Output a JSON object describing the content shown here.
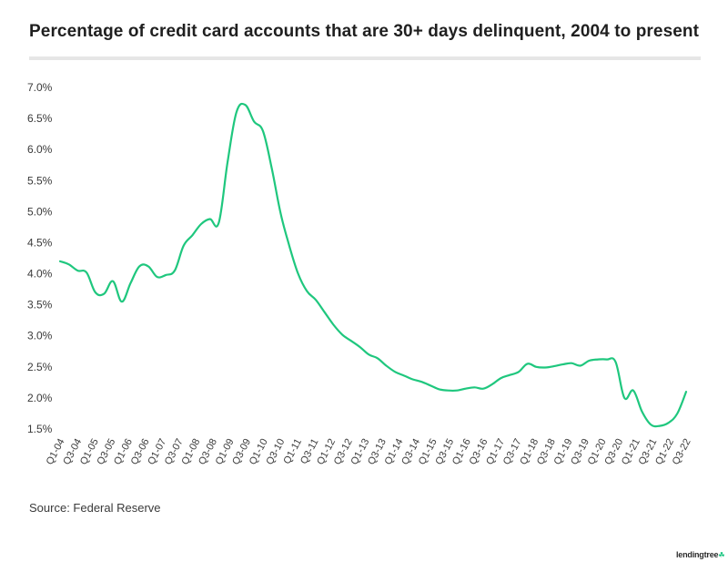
{
  "title": "Percentage of credit card accounts that are 30+ days delinquent, 2004 to present",
  "source": "Source: Federal Reserve",
  "logo_text": "lendingtree",
  "colors": {
    "line": "#1fc77e",
    "text": "#2b2b2b",
    "rule": "#e6e6e6"
  },
  "chart_data": {
    "type": "line",
    "title": "Percentage of credit card accounts that are 30+ days delinquent, 2004 to present",
    "xlabel": "",
    "ylabel": "",
    "ylim": [
      1.5,
      7.0
    ],
    "y_ticks": [
      "1.5%",
      "2.0%",
      "2.5%",
      "3.0%",
      "3.5%",
      "4.0%",
      "4.5%",
      "5.0%",
      "5.5%",
      "6.0%",
      "6.5%",
      "7.0%"
    ],
    "x_tick_labels": [
      "Q1-04",
      "Q3-04",
      "Q1-05",
      "Q3-05",
      "Q1-06",
      "Q3-06",
      "Q1-07",
      "Q3-07",
      "Q1-08",
      "Q3-08",
      "Q1-09",
      "Q3-09",
      "Q1-10",
      "Q3-10",
      "Q1-11",
      "Q3-11",
      "Q1-12",
      "Q3-12",
      "Q1-13",
      "Q3-13",
      "Q1-14",
      "Q3-14",
      "Q1-15",
      "Q3-15",
      "Q1-16",
      "Q3-16",
      "Q1-17",
      "Q3-17",
      "Q1-18",
      "Q3-18",
      "Q1-19",
      "Q3-19",
      "Q1-20",
      "Q3-20",
      "Q1-21",
      "Q3-21",
      "Q1-22",
      "Q3-22"
    ],
    "grid": false,
    "legend": "none",
    "series": [
      {
        "values": [
          4.2,
          4.15,
          4.05,
          4.02,
          3.7,
          3.68,
          3.88,
          3.55,
          3.85,
          4.12,
          4.12,
          3.95,
          3.98,
          4.05,
          4.45,
          4.62,
          4.8,
          4.88,
          4.82,
          5.8,
          6.6,
          6.72,
          6.45,
          6.3,
          5.7,
          4.98,
          4.45,
          4.0,
          3.72,
          3.58,
          3.38,
          3.18,
          3.02,
          2.92,
          2.82,
          2.7,
          2.64,
          2.52,
          2.42,
          2.36,
          2.3,
          2.26,
          2.2,
          2.14,
          2.12,
          2.12,
          2.15,
          2.17,
          2.15,
          2.22,
          2.32,
          2.37,
          2.42,
          2.55,
          2.5,
          2.49,
          2.51,
          2.54,
          2.56,
          2.52,
          2.6,
          2.62,
          2.62,
          2.58,
          2.0,
          2.12,
          1.78,
          1.57,
          1.55,
          1.6,
          1.75,
          2.1
        ]
      }
    ]
  }
}
